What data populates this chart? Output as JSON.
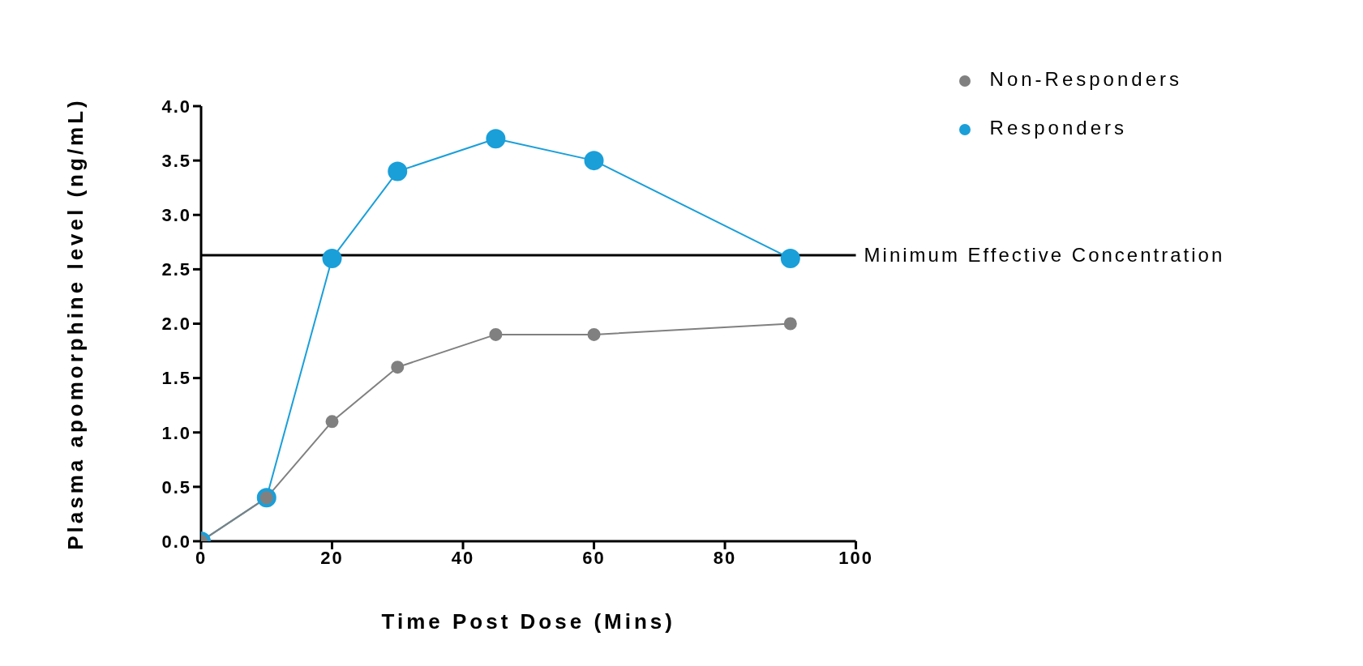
{
  "chart_data": {
    "type": "line",
    "xlabel": "Time Post Dose  (Mins)",
    "ylabel": "Plasma apomorphine level  (ng/mL)",
    "x": [
      0,
      10,
      20,
      30,
      45,
      60,
      90
    ],
    "series": [
      {
        "name": "Non-Responders",
        "color": "#808080",
        "values": [
          0,
          0.4,
          1.1,
          1.6,
          1.9,
          1.9,
          2.0
        ]
      },
      {
        "name": "Responders",
        "color": "#1a9fd9",
        "values": [
          0,
          0.4,
          2.6,
          3.4,
          3.7,
          3.5,
          2.6
        ]
      }
    ],
    "xlim": [
      0,
      100
    ],
    "xticks": [
      0,
      20,
      40,
      60,
      80,
      100
    ],
    "ylim": [
      0,
      4
    ],
    "yticks": [
      {
        "value": 0,
        "label": "0.0"
      },
      {
        "value": 0.5,
        "label": "0.5"
      },
      {
        "value": 1,
        "label": "1.0"
      },
      {
        "value": 1.5,
        "label": "1.5"
      },
      {
        "value": 2,
        "label": "2.0"
      },
      {
        "value": 2.5,
        "label": "2.5"
      },
      {
        "value": 3,
        "label": "3.0"
      },
      {
        "value": 3.5,
        "label": "3.5"
      },
      {
        "value": 4,
        "label": "4.0"
      }
    ],
    "ref_lines": [
      {
        "axis": "y",
        "value": 2.63,
        "label": "Minimum Effective Concentration",
        "color": "#000000"
      }
    ],
    "grid": false,
    "legend": "top right",
    "marker": "circle",
    "line_style": "solid"
  }
}
